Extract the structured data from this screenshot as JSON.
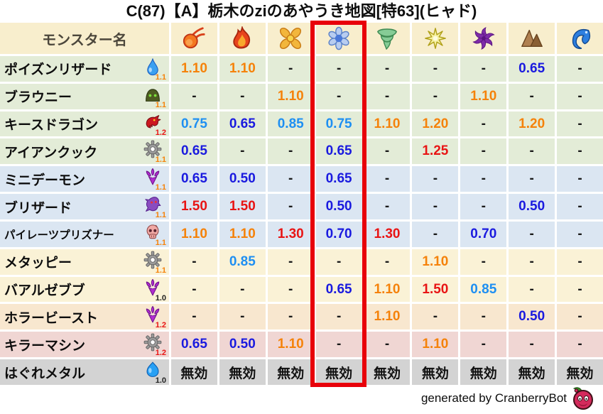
{
  "title": "C(87)【A】栃木のziのあやうき地図[特63](ヒャド)",
  "footer": {
    "credit": "generated by CranberryBot",
    "icon": "cranberry-icon"
  },
  "palette": {
    "row_tones": {
      "green": "#E3ECD7",
      "blue": "#DBE6F2",
      "cream": "#FAF2D6",
      "peach": "#F8E7CF",
      "pink": "#F0D6D3",
      "gray": "#D3D3D3",
      "header": "#F8EECD"
    },
    "value_tones": {
      "up": "#F5820A",
      "up2": "#E81414",
      "down1": "#1E8FF2",
      "down2": "#1A1ADF",
      "dash": "#1A1A1A",
      "immune": "#111111"
    },
    "multiplier_tones": {
      "orange": "#F5820A",
      "red": "#E81414",
      "black": "#222222"
    },
    "highlight": "#E8000A"
  },
  "chart_data": {
    "type": "table",
    "title": "C(87)【A】栃木のziのあやうき地図[特63](ヒャド)",
    "name_header": "モンスター名",
    "element_columns": [
      "fireball-icon",
      "flame-icon",
      "explosion-icon",
      "snowflake-icon",
      "tornado-icon",
      "spark-icon",
      "pinwheel-icon",
      "rock-icon",
      "wave-icon"
    ],
    "highlighted_column": "snowflake-icon",
    "highlighted_column_index": 3,
    "rows": [
      {
        "name": "ポイズンリザード",
        "icon": "water-drop-icon",
        "multiplier": "1.1",
        "multiplier_tone": "orange",
        "tone": "green",
        "values": [
          [
            "1.10",
            "up"
          ],
          [
            "1.10",
            "up"
          ],
          [
            "-",
            "dash"
          ],
          [
            "-",
            "dash"
          ],
          [
            "-",
            "dash"
          ],
          [
            "-",
            "dash"
          ],
          [
            "-",
            "dash"
          ],
          [
            "0.65",
            "down2"
          ],
          [
            "-",
            "dash"
          ]
        ]
      },
      {
        "name": "ブラウニー",
        "icon": "brownie-icon",
        "multiplier": "1.1",
        "multiplier_tone": "orange",
        "tone": "green",
        "values": [
          [
            "-",
            "dash"
          ],
          [
            "-",
            "dash"
          ],
          [
            "1.10",
            "up"
          ],
          [
            "-",
            "dash"
          ],
          [
            "-",
            "dash"
          ],
          [
            "-",
            "dash"
          ],
          [
            "1.10",
            "up"
          ],
          [
            "-",
            "dash"
          ],
          [
            "-",
            "dash"
          ]
        ]
      },
      {
        "name": "キースドラゴン",
        "icon": "dragon-icon",
        "multiplier": "1.2",
        "multiplier_tone": "red",
        "tone": "green",
        "values": [
          [
            "0.75",
            "down1"
          ],
          [
            "0.65",
            "down2"
          ],
          [
            "0.85",
            "down1"
          ],
          [
            "0.75",
            "down1"
          ],
          [
            "1.10",
            "up"
          ],
          [
            "1.20",
            "up"
          ],
          [
            "-",
            "dash"
          ],
          [
            "1.20",
            "up"
          ],
          [
            "-",
            "dash"
          ]
        ]
      },
      {
        "name": "アイアンクック",
        "icon": "gear-icon",
        "multiplier": "1.1",
        "multiplier_tone": "orange",
        "tone": "green",
        "values": [
          [
            "0.65",
            "down2"
          ],
          [
            "-",
            "dash"
          ],
          [
            "-",
            "dash"
          ],
          [
            "0.65",
            "down2"
          ],
          [
            "-",
            "dash"
          ],
          [
            "1.25",
            "up2"
          ],
          [
            "-",
            "dash"
          ],
          [
            "-",
            "dash"
          ],
          [
            "-",
            "dash"
          ]
        ]
      },
      {
        "name": "ミニデーモン",
        "icon": "trident-icon",
        "multiplier": "1.1",
        "multiplier_tone": "orange",
        "tone": "blue",
        "values": [
          [
            "0.65",
            "down2"
          ],
          [
            "0.50",
            "down2"
          ],
          [
            "-",
            "dash"
          ],
          [
            "0.65",
            "down2"
          ],
          [
            "-",
            "dash"
          ],
          [
            "-",
            "dash"
          ],
          [
            "-",
            "dash"
          ],
          [
            "-",
            "dash"
          ],
          [
            "-",
            "dash"
          ]
        ]
      },
      {
        "name": "ブリザード",
        "icon": "blizzard-icon",
        "multiplier": "1.1",
        "multiplier_tone": "orange",
        "tone": "blue",
        "values": [
          [
            "1.50",
            "up2"
          ],
          [
            "1.50",
            "up2"
          ],
          [
            "-",
            "dash"
          ],
          [
            "0.50",
            "down2"
          ],
          [
            "-",
            "dash"
          ],
          [
            "-",
            "dash"
          ],
          [
            "-",
            "dash"
          ],
          [
            "0.50",
            "down2"
          ],
          [
            "-",
            "dash"
          ]
        ]
      },
      {
        "name": "パイレーツプリズナー",
        "icon": "skull-icon",
        "multiplier": "1.1",
        "multiplier_tone": "orange",
        "tone": "blue",
        "values": [
          [
            "1.10",
            "up"
          ],
          [
            "1.10",
            "up"
          ],
          [
            "1.30",
            "up2"
          ],
          [
            "0.70",
            "down2"
          ],
          [
            "1.30",
            "up2"
          ],
          [
            "-",
            "dash"
          ],
          [
            "0.70",
            "down2"
          ],
          [
            "-",
            "dash"
          ],
          [
            "-",
            "dash"
          ]
        ]
      },
      {
        "name": "メタッピー",
        "icon": "gear-icon",
        "multiplier": "1.1",
        "multiplier_tone": "orange",
        "tone": "cream",
        "values": [
          [
            "-",
            "dash"
          ],
          [
            "0.85",
            "down1"
          ],
          [
            "-",
            "dash"
          ],
          [
            "-",
            "dash"
          ],
          [
            "-",
            "dash"
          ],
          [
            "1.10",
            "up"
          ],
          [
            "-",
            "dash"
          ],
          [
            "-",
            "dash"
          ],
          [
            "-",
            "dash"
          ]
        ]
      },
      {
        "name": "バアルゼブブ",
        "icon": "trident-icon",
        "multiplier": "1.0",
        "multiplier_tone": "black",
        "tone": "cream",
        "values": [
          [
            "-",
            "dash"
          ],
          [
            "-",
            "dash"
          ],
          [
            "-",
            "dash"
          ],
          [
            "0.65",
            "down2"
          ],
          [
            "1.10",
            "up"
          ],
          [
            "1.50",
            "up2"
          ],
          [
            "0.85",
            "down1"
          ],
          [
            "-",
            "dash"
          ],
          [
            "-",
            "dash"
          ]
        ]
      },
      {
        "name": "ホラービースト",
        "icon": "trident-icon",
        "multiplier": "1.2",
        "multiplier_tone": "red",
        "tone": "peach",
        "values": [
          [
            "-",
            "dash"
          ],
          [
            "-",
            "dash"
          ],
          [
            "-",
            "dash"
          ],
          [
            "-",
            "dash"
          ],
          [
            "1.10",
            "up"
          ],
          [
            "-",
            "dash"
          ],
          [
            "-",
            "dash"
          ],
          [
            "0.50",
            "down2"
          ],
          [
            "-",
            "dash"
          ]
        ]
      },
      {
        "name": "キラーマシン",
        "icon": "gear-icon",
        "multiplier": "1.2",
        "multiplier_tone": "red",
        "tone": "pink",
        "values": [
          [
            "0.65",
            "down2"
          ],
          [
            "0.50",
            "down2"
          ],
          [
            "1.10",
            "up"
          ],
          [
            "-",
            "dash"
          ],
          [
            "-",
            "dash"
          ],
          [
            "1.10",
            "up"
          ],
          [
            "-",
            "dash"
          ],
          [
            "-",
            "dash"
          ],
          [
            "-",
            "dash"
          ]
        ]
      },
      {
        "name": "はぐれメタル",
        "icon": "slime-icon",
        "multiplier": "1.0",
        "multiplier_tone": "black",
        "tone": "gray",
        "values": [
          [
            "無効",
            "immune"
          ],
          [
            "無効",
            "immune"
          ],
          [
            "無効",
            "immune"
          ],
          [
            "無効",
            "immune"
          ],
          [
            "無効",
            "immune"
          ],
          [
            "無効",
            "immune"
          ],
          [
            "無効",
            "immune"
          ],
          [
            "無効",
            "immune"
          ],
          [
            "無効",
            "immune"
          ]
        ]
      }
    ]
  }
}
